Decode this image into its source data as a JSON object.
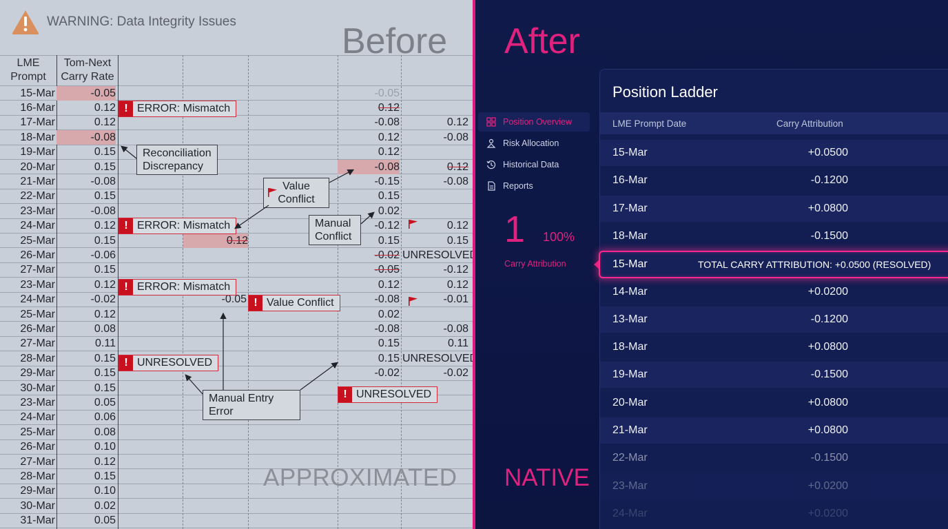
{
  "before": {
    "warning": "WARNING: Data Integrity Issues",
    "title": "Before",
    "footer": "APPROXIMATED",
    "headers": {
      "col1": "LME\nPrompt",
      "col2": "Tom-Next\nCarry Rate"
    },
    "rows": [
      {
        "date": "15-Mar",
        "rate": "-0.05"
      },
      {
        "date": "16-Mar",
        "rate": "0.12"
      },
      {
        "date": "17-Mar",
        "rate": "0.12"
      },
      {
        "date": "18-Mar",
        "rate": "-0.08"
      },
      {
        "date": "19-Mar",
        "rate": "0.15"
      },
      {
        "date": "20-Mar",
        "rate": "0.15"
      },
      {
        "date": "21-Mar",
        "rate": "-0.08"
      },
      {
        "date": "22-Mar",
        "rate": "0.15"
      },
      {
        "date": "23-Mar",
        "rate": "-0.08"
      },
      {
        "date": "24-Mar",
        "rate": "0.12"
      },
      {
        "date": "25-Mar",
        "rate": "0.15"
      },
      {
        "date": "26-Mar",
        "rate": "-0.06"
      },
      {
        "date": "27-Mar",
        "rate": "0.15"
      },
      {
        "date": "23-Mar",
        "rate": "0.12"
      },
      {
        "date": "24-Mar",
        "rate": "-0.02"
      },
      {
        "date": "25-Mar",
        "rate": "0.12"
      },
      {
        "date": "26-Mar",
        "rate": "0.08"
      },
      {
        "date": "27-Mar",
        "rate": "0.11"
      },
      {
        "date": "28-Mar",
        "rate": "0.15"
      },
      {
        "date": "29-Mar",
        "rate": "0.15"
      },
      {
        "date": "30-Mar",
        "rate": "0.15"
      },
      {
        "date": "23-Mar",
        "rate": "0.05"
      },
      {
        "date": "24-Mar",
        "rate": "0.06"
      },
      {
        "date": "25-Mar",
        "rate": "0.08"
      },
      {
        "date": "26-Mar",
        "rate": "0.10"
      },
      {
        "date": "27-Mar",
        "rate": "0.12"
      },
      {
        "date": "28-Mar",
        "rate": "0.15"
      },
      {
        "date": "29-Mar",
        "rate": "0.10"
      },
      {
        "date": "30-Mar",
        "rate": "0.02"
      },
      {
        "date": "31-Mar",
        "rate": "0.05"
      }
    ],
    "col5": [
      "-0.05",
      "0.12",
      "-0.08",
      "0.12",
      "0.12",
      "-0.08",
      "-0.15",
      "0.15",
      "0.02",
      "-0.12",
      "0.15",
      "-0.02",
      "-0.05",
      "0.12",
      "-0.08",
      "0.02",
      "-0.08",
      "0.15",
      "0.15",
      "-0.02"
    ],
    "col6": [
      "",
      "",
      "0.12",
      "-0.08",
      "",
      "0.12",
      "-0.08",
      "",
      "",
      "0.12",
      "0.15",
      "UNRESOLVED",
      "-0.12",
      "0.12",
      "-0.01",
      "",
      "-0.08",
      "0.11",
      "UNRESOLVED",
      "-0.02"
    ],
    "mid_values": {
      "r10": "0.12",
      "r14": "-0.05"
    },
    "errors": {
      "e1": "ERROR: Mismatch",
      "e2": "ERROR: Mismatch",
      "e3": "ERROR: Mismatch",
      "e4": "Value Conflict",
      "e5": "UNRESOLVED",
      "e6": "UNRESOLVED"
    },
    "callouts": {
      "reconciliation": "Reconciliation\nDiscrepancy",
      "value_conflict": "Value\nConflict",
      "manual_conflict": "Manual\nConflict",
      "manual_entry": "Manual Entry\nError"
    }
  },
  "after": {
    "title": "After",
    "footer": "NATIVE",
    "nav": [
      {
        "label": "Position Overview",
        "icon": "grid-icon",
        "active": true
      },
      {
        "label": "Risk Allocation",
        "icon": "risk-icon",
        "active": false
      },
      {
        "label": "Historical Data",
        "icon": "history-icon",
        "active": false
      },
      {
        "label": "Reports",
        "icon": "report-icon",
        "active": false
      }
    ],
    "metric": {
      "value": "1",
      "percent": "100%",
      "label": "Carry Attribution"
    },
    "panel": {
      "title": "Position Ladder",
      "col_date": "LME Prompt Date",
      "col_carry": "Carry Attribution",
      "rows": [
        {
          "date": "15-Mar",
          "value": "+0.0500"
        },
        {
          "date": "16-Mar",
          "value": "-0.1200"
        },
        {
          "date": "17-Mar",
          "value": "+0.0800"
        },
        {
          "date": "18-Mar",
          "value": "-0.1500"
        },
        {
          "date": "14-Mar",
          "value": "+0.0200"
        },
        {
          "date": "13-Mar",
          "value": "-0.1200"
        },
        {
          "date": "18-Mar",
          "value": "+0.0800"
        },
        {
          "date": "19-Mar",
          "value": "-0.1500"
        },
        {
          "date": "20-Mar",
          "value": "+0.0800"
        },
        {
          "date": "21-Mar",
          "value": "+0.0800"
        },
        {
          "date": "22-Mar",
          "value": "-0.1500"
        },
        {
          "date": "23-Mar",
          "value": "+0.0200"
        },
        {
          "date": "24-Mar",
          "value": "+0.0200"
        }
      ],
      "highlight": {
        "date": "15-Mar",
        "text": "TOTAL CARRY ATTRIBUTION: +0.0500 (RESOLVED)"
      }
    }
  },
  "colors": {
    "accent": "#e0227f",
    "error": "#c8101e",
    "panel": "#121d52"
  }
}
